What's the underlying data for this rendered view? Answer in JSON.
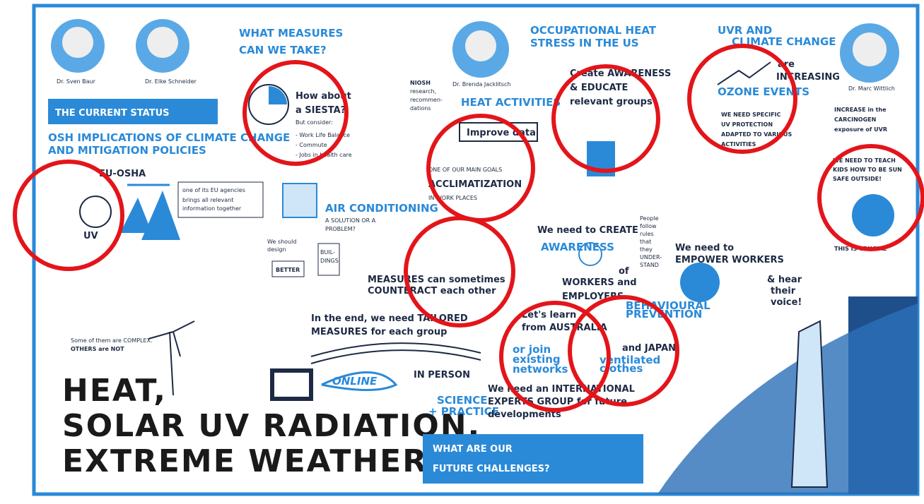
{
  "speakers": [
    "Dr. Sven Baur",
    "Dr. Elke Schneider",
    "Dr. Brenda Jacklitsch",
    "Dr. Marc Wittlich"
  ],
  "main_title": [
    "HEAT,",
    "SOLAR UV RADIATION,",
    "EXTREME WEATHER"
  ],
  "current_status": {
    "title": "THE CURRENT STATUS",
    "subtitle": [
      "OSH IMPLICATIONS OF CLIMATE CHANGE",
      "AND MITIGATION POLICIES"
    ],
    "agency": "EU-OSHA",
    "notes": [
      "one of its EU agencies",
      "brings all relevant",
      "information together"
    ],
    "uv": "UV",
    "complex": [
      "Some of them are COMPLEX.",
      "OTHERS are NOT"
    ]
  },
  "measures": {
    "title": [
      "WHAT MEASURES",
      "CAN WE TAKE?"
    ],
    "siesta": [
      "How about",
      "a SIESTA?",
      "But consider:",
      "- Work Life Balance",
      "- Commute",
      "- Jobs in health care"
    ],
    "air": "AIR CONDITIONING",
    "solution": [
      "A SOLUTION OR A",
      "PROBLEM?"
    ],
    "design": [
      "We should",
      "design"
    ],
    "better": "BETTER",
    "buildings": [
      "BUIL-",
      "DINGS"
    ],
    "counteract": [
      "MEASURES can sometimes",
      "COUNTERACT each other"
    ],
    "tailored": [
      "In the end, we need TAILORED",
      "MEASURES for each group"
    ]
  },
  "us": {
    "title": [
      "OCCUPATIONAL HEAT",
      "STRESS IN THE US"
    ],
    "niosh": [
      "NIOSH",
      "research,",
      "recommen-",
      "dations"
    ],
    "activities": "HEAT ACTIVITIES",
    "data": "Improve data",
    "goal": [
      "ONE OF OUR MAIN GOALS",
      "ACCLIMATIZATION",
      "IN WORK PLACES"
    ],
    "awareness": [
      "Create AWARENESS",
      "& EDUCATE",
      "relevant groups"
    ]
  },
  "uvr": {
    "title": [
      "UVR AND",
      "CLIMATE CHANGE"
    ],
    "increasing": [
      "are",
      "INCREASING"
    ],
    "ozone": "OZONE EVENTS",
    "protection": [
      "WE NEED SPECIFIC",
      "UV PROTECTION",
      "ADAPTED TO VARIOUS",
      "ACTIVITIES"
    ],
    "carcinogen": [
      "INCREASE in the",
      "CARCINOGEN",
      "exposure of UVR"
    ],
    "kids": [
      "WE NEED TO TEACH",
      "KIDS HOW TO BE SUN",
      "SAFE OUTSIDE!"
    ],
    "crucial": "THIS IS CRUCIAL"
  },
  "future": {
    "create": "We need to CREATE",
    "aware": "AWARENESS",
    "rules": [
      "People",
      "follow",
      "rules",
      "that",
      "they",
      "UNDER-",
      "STAND"
    ],
    "workers": [
      "of",
      "WORKERS and",
      "EMPLOYERS"
    ],
    "empower": [
      "We need to",
      "EMPOWER WORKERS"
    ],
    "voice": [
      "& hear",
      "their",
      "voice!"
    ],
    "australia": [
      "Let's learn",
      "from AUSTRALIA"
    ],
    "networks": [
      "or join",
      "existing",
      "networks"
    ],
    "japan": "and JAPAN!",
    "behavioural": [
      "BEHAVIOURAL",
      "PREVENTION"
    ],
    "clothes": [
      "ventilated",
      "clothes"
    ],
    "online": "ONLINE",
    "in_person": "IN PERSON",
    "science": [
      "SCIENCE",
      "+ PRACTICE"
    ],
    "international": [
      "We need an INTERNATIONAL",
      "EXPERTS GROUP for future",
      "developments"
    ],
    "challenges": [
      "WHAT ARE OUR",
      "FUTURE CHALLENGES?"
    ]
  }
}
